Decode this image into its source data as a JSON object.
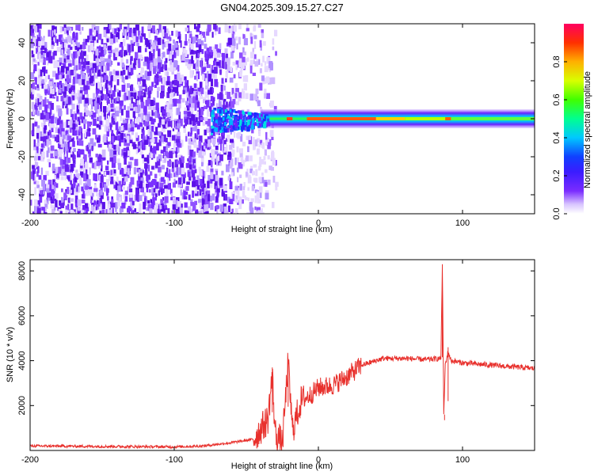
{
  "title": "GN04.2025.309.15.27.C27",
  "chart_data": [
    {
      "type": "heatmap",
      "xlabel": "Height of straight line (km)",
      "ylabel": "Frequency (Hz)",
      "xlim": [
        -200,
        150
      ],
      "ylim": [
        -50,
        50
      ],
      "xticks": [
        -200,
        -100,
        0,
        100
      ],
      "yticks": [
        -40,
        -20,
        0,
        20,
        40
      ],
      "colorbar": {
        "label": "Normalized spectral amplitude",
        "range": [
          0,
          1
        ],
        "ticks": [
          "0.0",
          "0.2",
          "0.4",
          "0.6",
          "0.8"
        ],
        "tick_values": [
          0,
          0.2,
          0.4,
          0.6,
          0.8
        ],
        "colors": [
          "#ffffff",
          "#d8c4ff",
          "#7a2cff",
          "#4b10e0",
          "#2a3cff",
          "#00c8ff",
          "#00ff90",
          "#40ff00",
          "#d8ff00",
          "#ffb000",
          "#ff3000",
          "#ff0060"
        ]
      },
      "regions": [
        {
          "desc": "noise",
          "x": [
            -200,
            -30
          ],
          "freq_range": [
            -50,
            50
          ],
          "amplitude": 0.08
        },
        {
          "desc": "ridge",
          "x": [
            -75,
            150
          ],
          "freq_center": 0,
          "freq_halfwidth": 5,
          "amplitude": 0.6
        }
      ]
    },
    {
      "type": "line",
      "xlabel": "Height of straight line (km)",
      "ylabel": "SNR (10 * v/v)",
      "xlim": [
        -200,
        150
      ],
      "ylim": [
        0,
        8500
      ],
      "xticks": [
        -200,
        -100,
        0,
        100
      ],
      "yticks": [
        2000,
        4000,
        6000,
        8000
      ],
      "color": "#e8302c",
      "profile": [
        [
          -200,
          200
        ],
        [
          -150,
          180
        ],
        [
          -100,
          160
        ],
        [
          -80,
          200
        ],
        [
          -60,
          350
        ],
        [
          -45,
          500
        ],
        [
          -35,
          1400
        ],
        [
          -32,
          3400
        ],
        [
          -30,
          800
        ],
        [
          -25,
          300
        ],
        [
          -21,
          3900
        ],
        [
          -18,
          900
        ],
        [
          -12,
          2200
        ],
        [
          -5,
          2500
        ],
        [
          0,
          2800
        ],
        [
          10,
          2900
        ],
        [
          20,
          3300
        ],
        [
          30,
          3800
        ],
        [
          45,
          4100
        ],
        [
          60,
          4100
        ],
        [
          75,
          4050
        ],
        [
          85,
          4100
        ],
        [
          86,
          8300
        ],
        [
          87,
          1600
        ],
        [
          88,
          3800
        ],
        [
          90,
          4400
        ],
        [
          92,
          4000
        ],
        [
          100,
          3900
        ],
        [
          120,
          3800
        ],
        [
          150,
          3650
        ]
      ]
    }
  ]
}
